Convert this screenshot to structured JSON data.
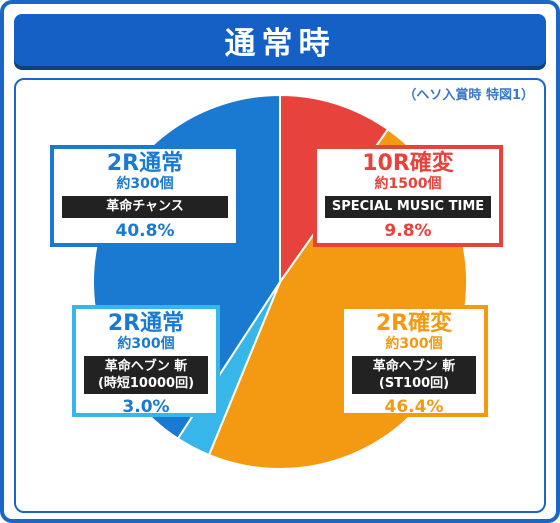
{
  "title": "通常時",
  "note": "（ヘソ入賞時 特図1）",
  "chart_data": {
    "type": "pie",
    "title": "通常時",
    "slices": [
      {
        "name": "10R確変",
        "bonus": "約1500個",
        "machine": "SPECIAL MUSIC TIME",
        "value": 9.8,
        "label": "9.8%",
        "color": "#e8423c"
      },
      {
        "name": "2R確変",
        "bonus": "約300個",
        "machine": "革命ヘブン 斬\n(ST100回)",
        "value": 46.4,
        "label": "46.4%",
        "color": "#f39a12"
      },
      {
        "name": "2R通常",
        "bonus": "約300個",
        "machine": "革命ヘブン 斬\n(時短10000回)",
        "value": 3.0,
        "label": "3.0%",
        "color": "#37b6ea"
      },
      {
        "name": "2R通常",
        "bonus": "約300個",
        "machine": "革命チャンス",
        "value": 40.8,
        "label": "40.8%",
        "color": "#1a7ad2"
      }
    ]
  },
  "labels": {
    "r10": {
      "name": "10R確変",
      "bonus": "約1500個",
      "bar": "SPECIAL MUSIC TIME",
      "pct": "9.8%"
    },
    "r2k": {
      "name": "2R確変",
      "bonus": "約300個",
      "bar1": "革命ヘブン 斬",
      "bar2": "(ST100回)",
      "pct": "46.4%"
    },
    "r2n_small": {
      "name": "2R通常",
      "bonus": "約300個",
      "bar1": "革命ヘブン 斬",
      "bar2": "(時短10000回)",
      "pct": "3.0%"
    },
    "r2n_large": {
      "name": "2R通常",
      "bonus": "約300個",
      "bar": "革命チャンス",
      "pct": "40.8%"
    }
  }
}
